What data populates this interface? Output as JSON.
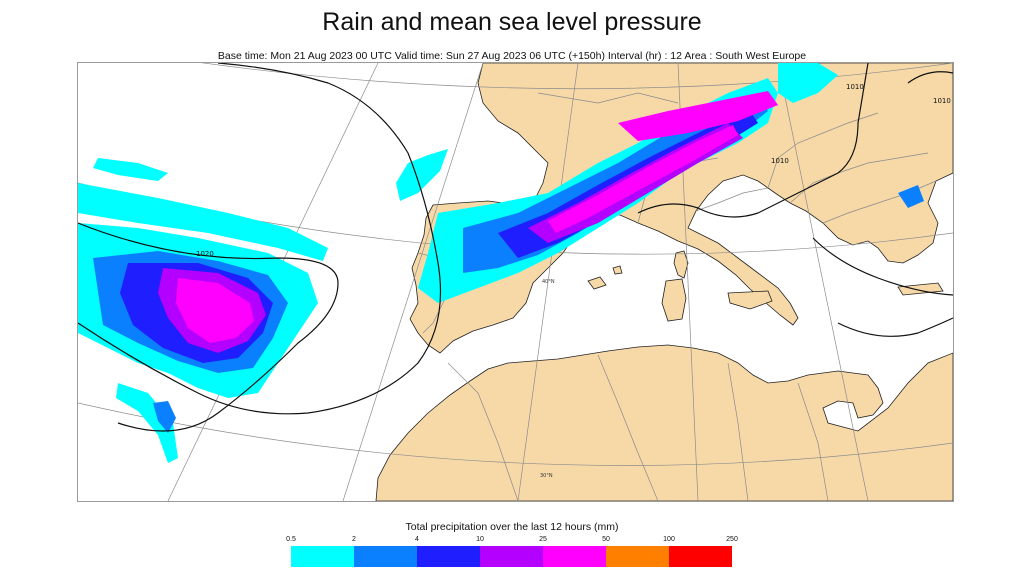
{
  "title": "Rain and mean sea level pressure",
  "subtitle": "Base time: Mon 21 Aug 2023 00 UTC Valid time: Sun 27 Aug 2023 06 UTC (+150h) Interval (hr) : 12 Area : South West Europe",
  "map": {
    "isobar_labels": [
      "1020",
      "1010",
      "1010",
      "1010"
    ],
    "graticule_labels": [
      "40°N",
      "30°N"
    ],
    "colors": {
      "land": "#f7d9a8",
      "sea": "#ffffff",
      "border": "#8a8a8a",
      "isobar": "#111111"
    }
  },
  "legend": {
    "title": "Total precipitation over the last 12 hours (mm)",
    "ticks": [
      "0.5",
      "2",
      "4",
      "10",
      "25",
      "50",
      "100",
      "250"
    ],
    "colors": [
      "#00ffff",
      "#0a80ff",
      "#1e1eff",
      "#b400ff",
      "#ff00ff",
      "#ff8000",
      "#ff0000"
    ]
  }
}
